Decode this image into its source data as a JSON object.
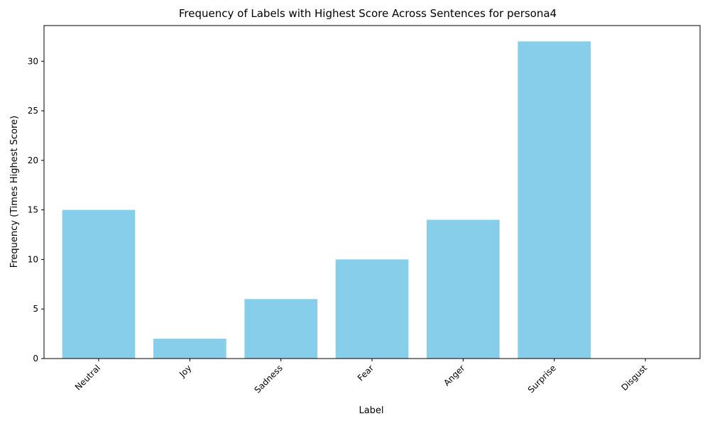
{
  "chart_data": {
    "type": "bar",
    "title": "Frequency of Labels with Highest Score Across Sentences for persona4",
    "xlabel": "Label",
    "ylabel": "Frequency (Times Highest Score)",
    "categories": [
      "Neutral",
      "Joy",
      "Sadness",
      "Fear",
      "Anger",
      "Surprise",
      "Disgust"
    ],
    "values": [
      15,
      2,
      6,
      10,
      14,
      32,
      0
    ],
    "ylim": [
      0,
      33.6
    ],
    "yticks": [
      0,
      5,
      10,
      15,
      20,
      25,
      30
    ],
    "bar_color": "#87CEEB",
    "grid": false,
    "legend": "none"
  }
}
